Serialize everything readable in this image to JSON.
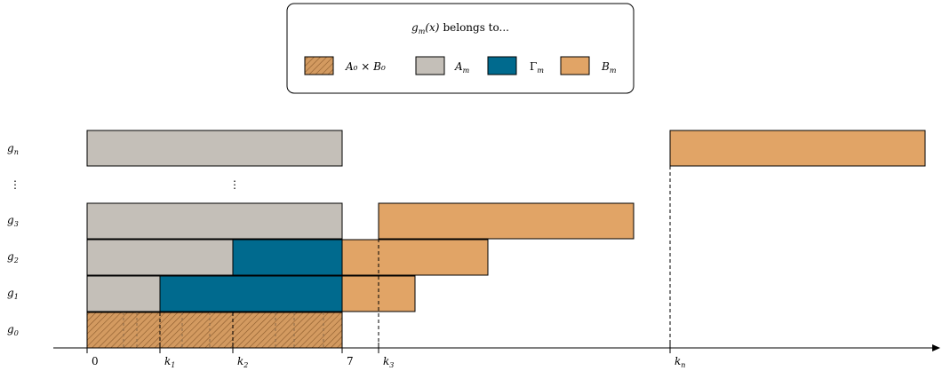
{
  "legend": {
    "title": "g_m(x) belongs to...",
    "title_parts": {
      "g": "g",
      "sub": "m",
      "arg": "(x)",
      "rest": "belongs to..."
    },
    "items": [
      {
        "key": "A0xB0",
        "label": "A₀ × B₀"
      },
      {
        "key": "Am",
        "label": "A_m",
        "base": "A",
        "sub": "m"
      },
      {
        "key": "Gm",
        "label": "Γ_m",
        "base": "Γ",
        "sub": "m"
      },
      {
        "key": "Bm",
        "label": "B_m",
        "base": "B",
        "sub": "m"
      }
    ]
  },
  "colors": {
    "A0xB0": "#c9935a",
    "Am": "#c4bfb8",
    "Gm": "#006a8e",
    "Bm": "#e1a466",
    "stroke": "#000000"
  },
  "rows": [
    {
      "base": "g",
      "sub": "n"
    },
    {
      "ellipsis": "⋮"
    },
    {
      "base": "g",
      "sub": "3"
    },
    {
      "base": "g",
      "sub": "2"
    },
    {
      "base": "g",
      "sub": "1"
    },
    {
      "base": "g",
      "sub": "0"
    }
  ],
  "ticks": [
    {
      "label": "0",
      "is_var": false
    },
    {
      "base": "k",
      "sub": "1",
      "is_var": true
    },
    {
      "base": "k",
      "sub": "2",
      "is_var": true
    },
    {
      "label": "7",
      "is_var": false
    },
    {
      "base": "k",
      "sub": "3",
      "is_var": true
    },
    {
      "base": "k",
      "sub": "n",
      "is_var": true
    }
  ],
  "mid_ellipsis": "⋮"
}
